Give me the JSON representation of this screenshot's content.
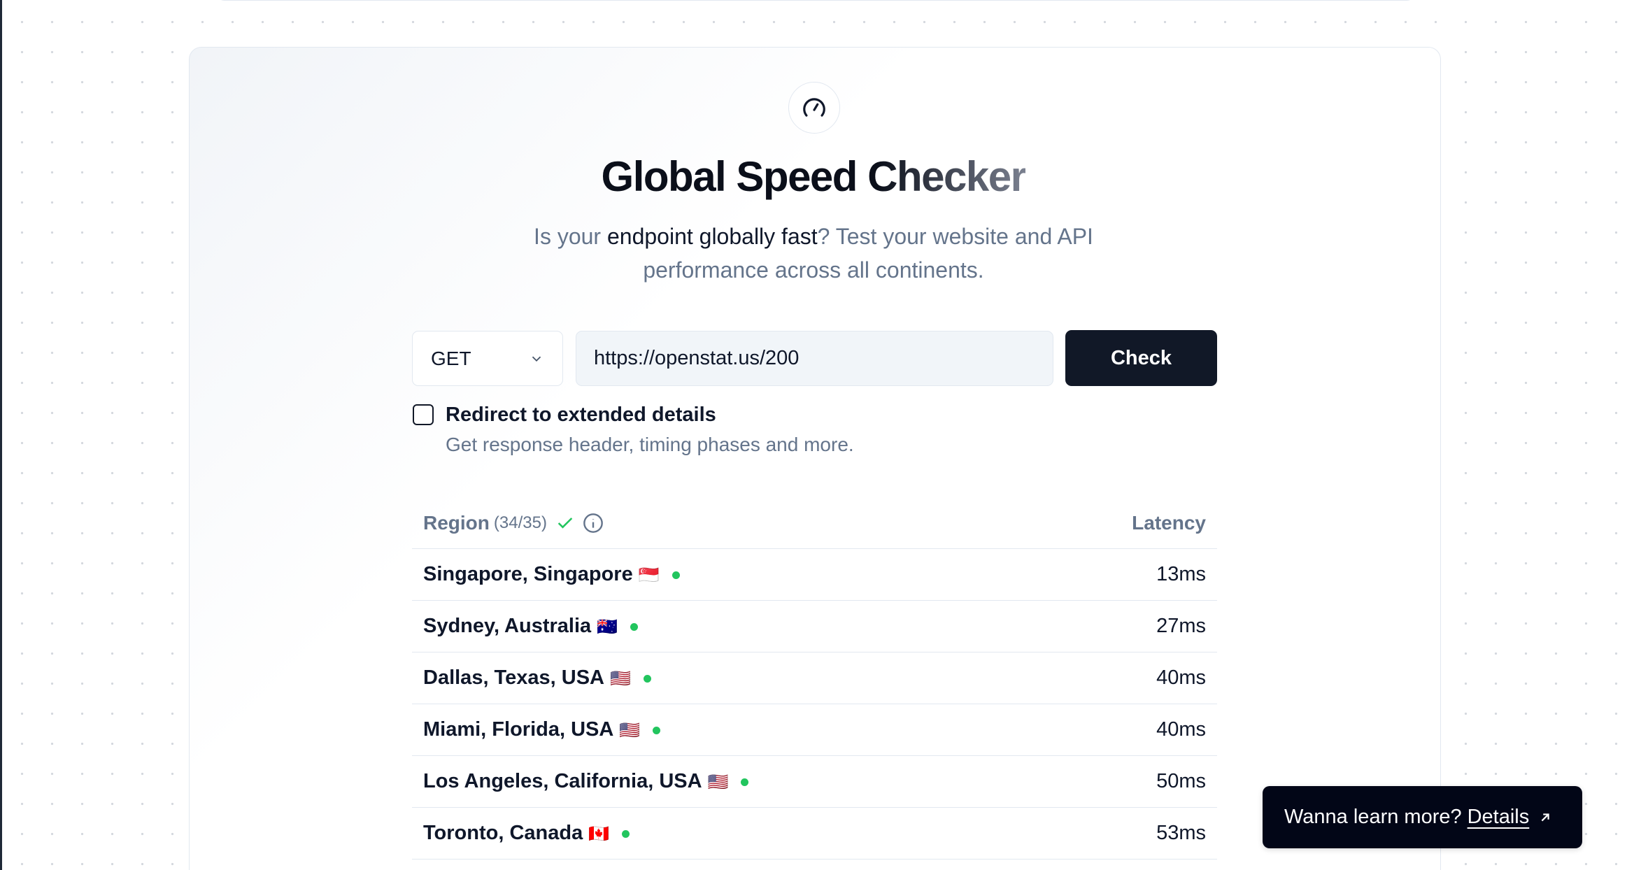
{
  "header": {
    "title": "Global Speed Checker",
    "subtitle_pre": "Is your ",
    "subtitle_em": "endpoint globally fast",
    "subtitle_post": "? Test your website and API performance across all continents."
  },
  "form": {
    "method": "GET",
    "url": "https://openstat.us/200",
    "check_label": "Check",
    "redirect_label": "Redirect to extended details",
    "redirect_desc": "Get response header, timing phases and more.",
    "redirect_checked": false
  },
  "table": {
    "region_header": "Region",
    "count": "(34/35)",
    "latency_header": "Latency",
    "rows": [
      {
        "region": "Singapore, Singapore",
        "flag": "🇸🇬",
        "latency": "13ms",
        "status": "ok"
      },
      {
        "region": "Sydney, Australia",
        "flag": "🇦🇺",
        "latency": "27ms",
        "status": "ok"
      },
      {
        "region": "Dallas, Texas, USA",
        "flag": "🇺🇸",
        "latency": "40ms",
        "status": "ok"
      },
      {
        "region": "Miami, Florida, USA",
        "flag": "🇺🇸",
        "latency": "40ms",
        "status": "ok"
      },
      {
        "region": "Los Angeles, California, USA",
        "flag": "🇺🇸",
        "latency": "50ms",
        "status": "ok"
      },
      {
        "region": "Toronto, Canada",
        "flag": "🇨🇦",
        "latency": "53ms",
        "status": "ok"
      }
    ]
  },
  "toast": {
    "text": "Wanna learn more?",
    "link": "Details"
  },
  "colors": {
    "ok": "#22c55e",
    "button": "#111827",
    "muted": "#64748b"
  }
}
